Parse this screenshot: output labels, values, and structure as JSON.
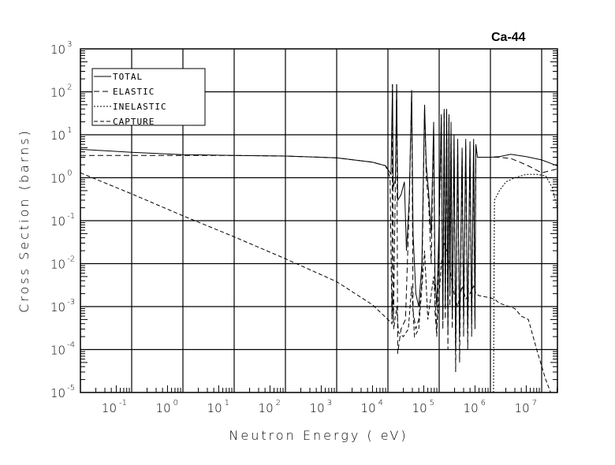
{
  "chart_data": {
    "type": "line",
    "title": "Ca-44",
    "xlabel": "Neutron Energy ( eV)",
    "ylabel": "Cross Section (barns)",
    "xscale": "log",
    "yscale": "log",
    "xlim": [
      0.01,
      20000000
    ],
    "ylim": [
      1e-05,
      1000
    ],
    "grid": true,
    "legend_position": "top-left",
    "x_ticks": [
      {
        "base": "10",
        "exp": "-1",
        "v": 0.1
      },
      {
        "base": "10",
        "exp": "0",
        "v": 1
      },
      {
        "base": "10",
        "exp": "1",
        "v": 10
      },
      {
        "base": "10",
        "exp": "2",
        "v": 100
      },
      {
        "base": "10",
        "exp": "3",
        "v": 1000
      },
      {
        "base": "10",
        "exp": "4",
        "v": 10000
      },
      {
        "base": "10",
        "exp": "5",
        "v": 100000
      },
      {
        "base": "10",
        "exp": "6",
        "v": 1000000
      },
      {
        "base": "10",
        "exp": "7",
        "v": 10000000
      }
    ],
    "y_ticks": [
      {
        "base": "10",
        "exp": "3",
        "v": 1000
      },
      {
        "base": "10",
        "exp": "2",
        "v": 100
      },
      {
        "base": "10",
        "exp": "1",
        "v": 10
      },
      {
        "base": "10",
        "exp": "0",
        "v": 1
      },
      {
        "base": "10",
        "exp": "-1",
        "v": 0.1
      },
      {
        "base": "10",
        "exp": "-2",
        "v": 0.01
      },
      {
        "base": "10",
        "exp": "-3",
        "v": 0.001
      },
      {
        "base": "10",
        "exp": "-4",
        "v": 0.0001
      },
      {
        "base": "10",
        "exp": "-5",
        "v": 1e-05
      }
    ],
    "series": [
      {
        "name": "TOTAL",
        "dash": "solid",
        "points": [
          [
            0.01,
            4.6
          ],
          [
            0.1,
            3.9
          ],
          [
            1,
            3.45
          ],
          [
            10,
            3.3
          ],
          [
            100,
            3.2
          ],
          [
            1000,
            2.9
          ],
          [
            5000,
            2.3
          ],
          [
            9000,
            1.9
          ],
          [
            11500,
            1.2
          ],
          [
            12300,
            150
          ],
          [
            12700,
            0.6
          ],
          [
            14000,
            0.9
          ],
          [
            14800,
            150
          ],
          [
            15500,
            0.3
          ],
          [
            18000,
            0.4
          ],
          [
            21000,
            0.8
          ],
          [
            23000,
            0.02
          ],
          [
            26000,
            0.3
          ],
          [
            29000,
            110
          ],
          [
            31000,
            0.05
          ],
          [
            35000,
            0.002
          ],
          [
            40000,
            0.001
          ],
          [
            46000,
            0.01
          ],
          [
            52000,
            50
          ],
          [
            56000,
            2
          ],
          [
            62000,
            0.5
          ],
          [
            70000,
            0.05
          ],
          [
            78000,
            20
          ],
          [
            83000,
            0.005
          ],
          [
            90000,
            0.001
          ],
          [
            100000,
            0.1
          ],
          [
            110000,
            30
          ],
          [
            118000,
            0.0005
          ],
          [
            125000,
            40
          ],
          [
            132000,
            0.001
          ],
          [
            140000,
            40
          ],
          [
            148000,
            0.0003
          ],
          [
            155000,
            30
          ],
          [
            162000,
            0.002
          ],
          [
            170000,
            20
          ],
          [
            180000,
            0.0005
          ],
          [
            195000,
            10
          ],
          [
            210000,
            0.0001
          ],
          [
            230000,
            8
          ],
          [
            250000,
            0.0002
          ],
          [
            280000,
            5
          ],
          [
            300000,
            0.0005
          ],
          [
            330000,
            8
          ],
          [
            360000,
            0.0003
          ],
          [
            400000,
            7
          ],
          [
            430000,
            0.0004
          ],
          [
            470000,
            8
          ],
          [
            500000,
            0.0005
          ],
          [
            520000,
            6
          ],
          [
            560000,
            3
          ],
          [
            1000000,
            3
          ],
          [
            1500000,
            3.1
          ],
          [
            2500000,
            3.5
          ],
          [
            5000000,
            3.1
          ],
          [
            10000000,
            2.6
          ],
          [
            20000000,
            1.9
          ]
        ]
      },
      {
        "name": "ELASTIC",
        "dash": "long",
        "points": [
          [
            0.01,
            3.3
          ],
          [
            0.1,
            3.3
          ],
          [
            1,
            3.3
          ],
          [
            10,
            3.3
          ],
          [
            100,
            3.2
          ],
          [
            1000,
            2.9
          ],
          [
            5000,
            2.3
          ],
          [
            9000,
            1.9
          ],
          [
            11000,
            1.0
          ],
          [
            12000,
            0.0005
          ],
          [
            12300,
            150
          ],
          [
            12800,
            0.0004
          ],
          [
            14800,
            150
          ],
          [
            15500,
            8e-05
          ],
          [
            18000,
            0.0003
          ],
          [
            22000,
            0.0005
          ],
          [
            26000,
            0.2
          ],
          [
            29000,
            100
          ],
          [
            31000,
            0.0008
          ],
          [
            35000,
            0.0003
          ],
          [
            40000,
            0.0005
          ],
          [
            46000,
            0.004
          ],
          [
            52000,
            45
          ],
          [
            56000,
            1
          ],
          [
            62000,
            0.3
          ],
          [
            70000,
            0.01
          ],
          [
            78000,
            15
          ],
          [
            83000,
            0.0008
          ],
          [
            90000,
            0.0002
          ],
          [
            100000,
            0.05
          ],
          [
            110000,
            25
          ],
          [
            118000,
            0.0003
          ],
          [
            125000,
            35
          ],
          [
            132000,
            0.0005
          ],
          [
            140000,
            35
          ],
          [
            148000,
            0.0001
          ],
          [
            155000,
            25
          ],
          [
            162000,
            0.001
          ],
          [
            170000,
            15
          ],
          [
            180000,
            0.0003
          ],
          [
            195000,
            8
          ],
          [
            210000,
            3e-05
          ],
          [
            230000,
            6
          ],
          [
            250000,
            5e-05
          ],
          [
            280000,
            4
          ],
          [
            300000,
            0.0002
          ],
          [
            330000,
            6
          ],
          [
            360000,
            0.0001
          ],
          [
            400000,
            5
          ],
          [
            430000,
            0.0002
          ],
          [
            470000,
            6
          ],
          [
            500000,
            0.0003
          ],
          [
            520000,
            5
          ],
          [
            560000,
            3
          ],
          [
            1000000,
            3
          ],
          [
            1500000,
            3.0
          ],
          [
            2500000,
            2.8
          ],
          [
            5000000,
            2.0
          ],
          [
            10000000,
            1.3
          ],
          [
            20000000,
            1.6
          ]
        ]
      },
      {
        "name": "INELASTIC",
        "dash": "short",
        "points": [
          [
            1150000,
            1e-05
          ],
          [
            1200000,
            0.3
          ],
          [
            1500000,
            0.5
          ],
          [
            2000000,
            0.8
          ],
          [
            3000000,
            1.0
          ],
          [
            5000000,
            1.2
          ],
          [
            8000000,
            1.2
          ],
          [
            12000000,
            1.1
          ],
          [
            16000000,
            0.6
          ],
          [
            20000000,
            0.2
          ]
        ]
      },
      {
        "name": "CAPTURE",
        "dash": "dashdot",
        "points": [
          [
            0.01,
            1.3
          ],
          [
            0.1,
            0.42
          ],
          [
            1,
            0.13
          ],
          [
            10,
            0.042
          ],
          [
            100,
            0.013
          ],
          [
            1000,
            0.0038
          ],
          [
            5000,
            0.0011
          ],
          [
            10000,
            0.0005
          ],
          [
            12000,
            0.0004
          ],
          [
            12300,
            0.002
          ],
          [
            13000,
            0.0003
          ],
          [
            14800,
            0.001
          ],
          [
            16000,
            0.00025
          ],
          [
            20000,
            0.0002
          ],
          [
            25000,
            0.0003
          ],
          [
            29000,
            0.003
          ],
          [
            33000,
            0.0002
          ],
          [
            40000,
            0.0003
          ],
          [
            52000,
            0.02
          ],
          [
            60000,
            0.0005
          ],
          [
            78000,
            0.005
          ],
          [
            90000,
            0.0003
          ],
          [
            110000,
            0.01
          ],
          [
            125000,
            0.03
          ],
          [
            140000,
            0.02
          ],
          [
            155000,
            0.01
          ],
          [
            170000,
            0.005
          ],
          [
            195000,
            0.002
          ],
          [
            230000,
            0.001
          ],
          [
            280000,
            0.003
          ],
          [
            330000,
            0.0015
          ],
          [
            400000,
            0.002
          ],
          [
            470000,
            0.003
          ],
          [
            520000,
            0.002
          ],
          [
            600000,
            0.0018
          ],
          [
            1000000,
            0.0016
          ],
          [
            1200000,
            0.0015
          ],
          [
            1500000,
            0.0012
          ],
          [
            3000000,
            0.0009
          ],
          [
            4000000,
            0.0006
          ],
          [
            5500000,
            0.0005
          ],
          [
            8000000,
            0.0001
          ],
          [
            12000000,
            2e-05
          ],
          [
            15000000,
            1e-05
          ]
        ]
      }
    ]
  }
}
